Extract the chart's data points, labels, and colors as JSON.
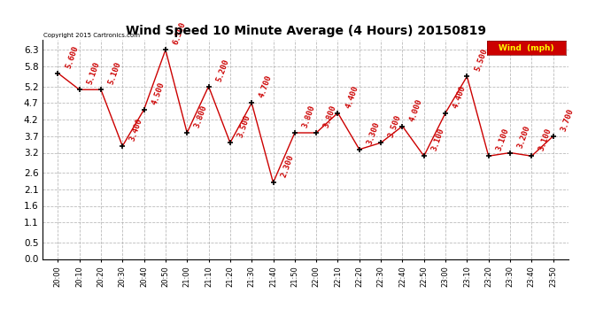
{
  "title": "Wind Speed 10 Minute Average (4 Hours) 20150819",
  "x_labels": [
    "20:00",
    "20:10",
    "20:20",
    "20:30",
    "20:40",
    "20:50",
    "21:00",
    "21:10",
    "21:20",
    "21:30",
    "21:40",
    "21:50",
    "22:00",
    "22:10",
    "22:20",
    "22:30",
    "22:40",
    "22:50",
    "23:00",
    "23:10",
    "23:20",
    "23:30",
    "23:40",
    "23:50"
  ],
  "y_values": [
    5.6,
    5.1,
    5.1,
    3.4,
    4.5,
    6.3,
    3.8,
    5.2,
    3.5,
    4.7,
    2.3,
    3.8,
    3.8,
    4.4,
    3.3,
    3.5,
    4.0,
    3.1,
    4.4,
    5.5,
    3.1,
    3.2,
    3.1,
    3.7
  ],
  "line_color": "#cc0000",
  "marker_color": "#000000",
  "label_color": "#cc0000",
  "background_color": "#ffffff",
  "grid_color": "#aaaaaa",
  "legend_label": "Wind  (mph)",
  "legend_bg": "#cc0000",
  "legend_text_color": "#ffff00",
  "copyright_text": "Copyright 2015 Cartronics.com",
  "ylim_min": 0.0,
  "ylim_max": 6.6,
  "yticks": [
    0.0,
    0.5,
    1.1,
    1.6,
    2.1,
    2.6,
    3.2,
    3.7,
    4.2,
    4.7,
    5.2,
    5.8,
    6.3
  ]
}
